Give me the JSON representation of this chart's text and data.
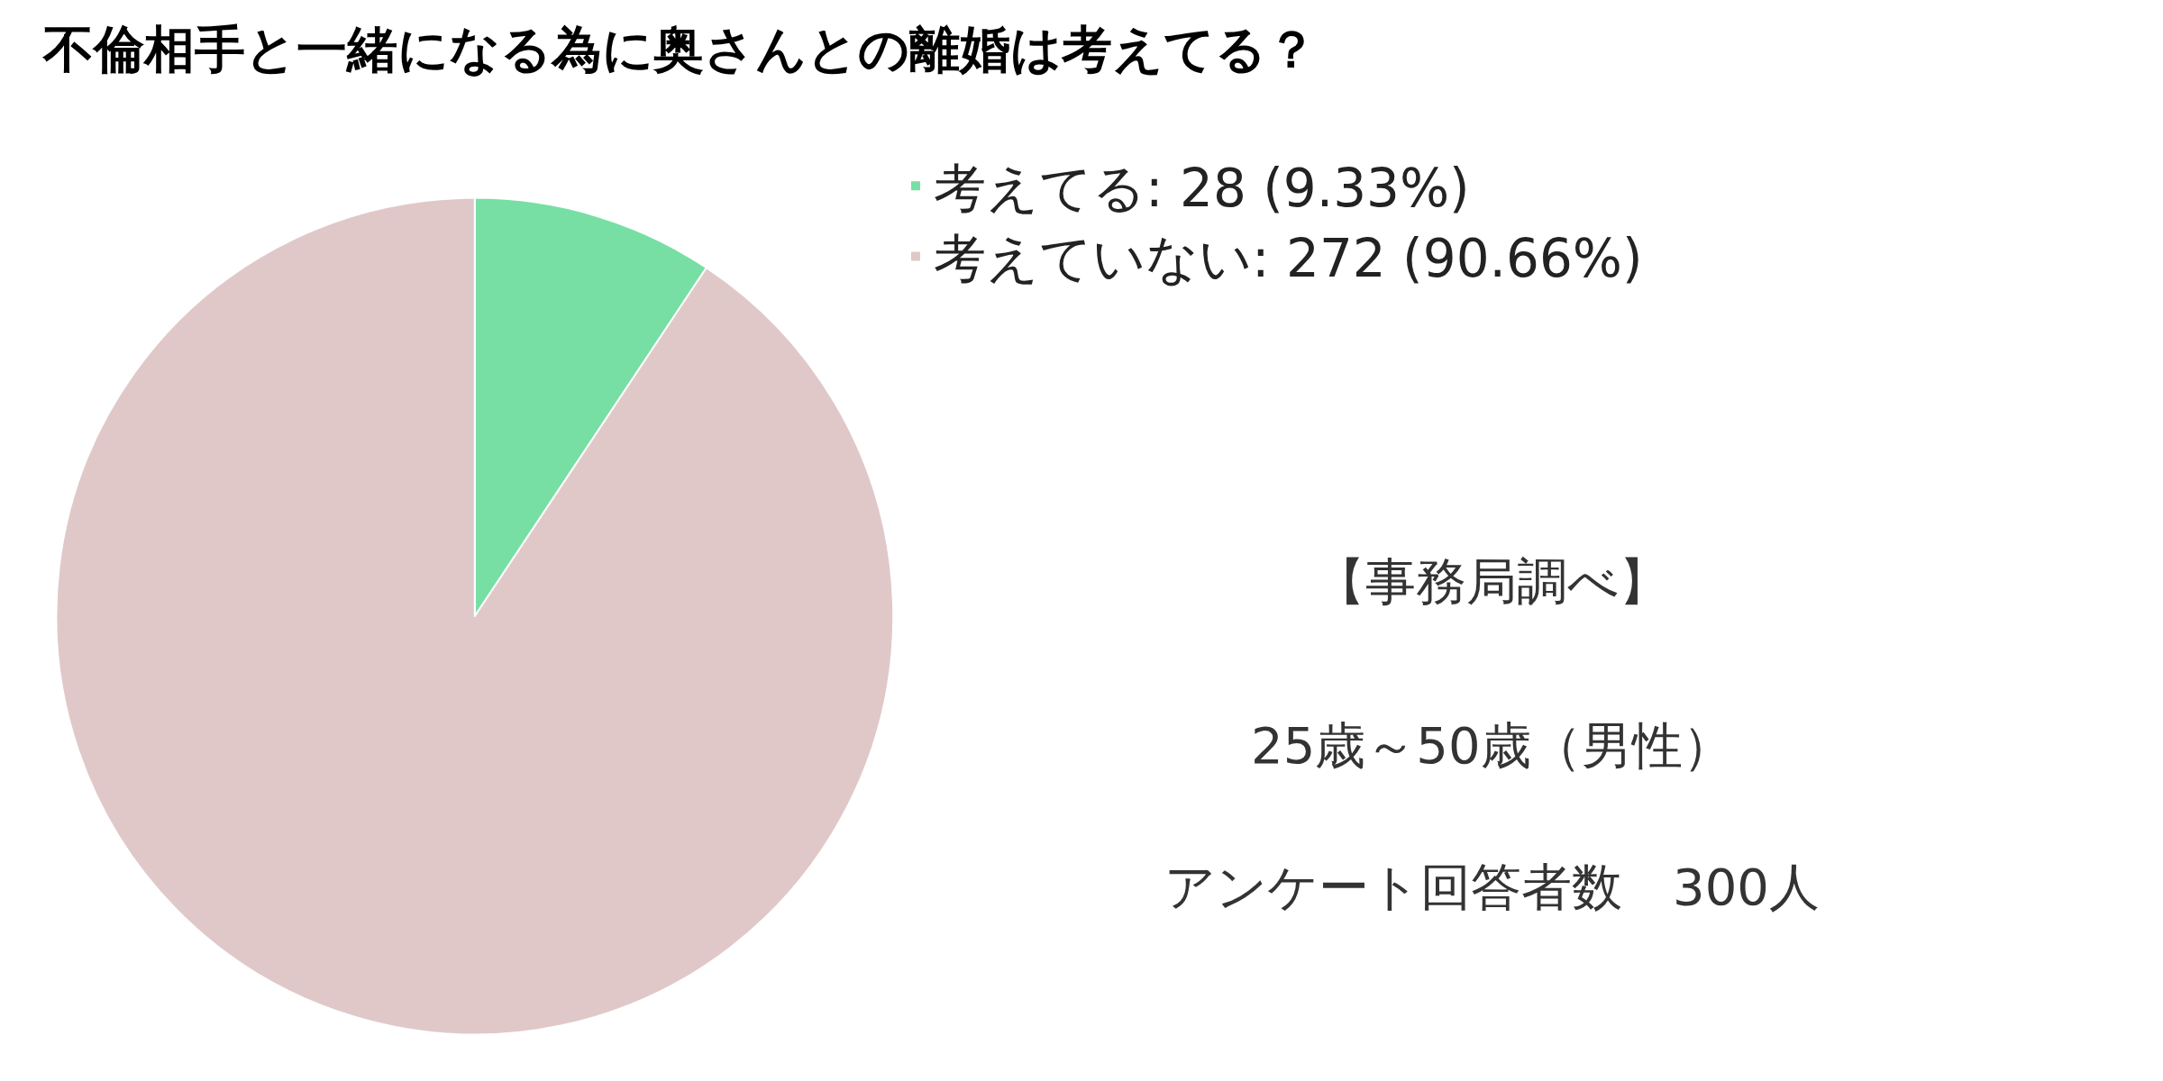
{
  "chart_data": {
    "type": "pie",
    "title": "不倫相手と一緒になる為に奥さんとの離婚は考えてる？",
    "categories": [
      "考えてる",
      "考えていない"
    ],
    "values": [
      28,
      272
    ],
    "value_labels": [
      "28 (9.33%)",
      "272 (90.66%)"
    ],
    "colors": [
      "#77dfa4",
      "#e0c8c9"
    ],
    "legend": "top right",
    "annotations": [
      "【事務局調べ】",
      "25歳～50歳（男性）",
      "アンケート回答者数　300人"
    ]
  }
}
